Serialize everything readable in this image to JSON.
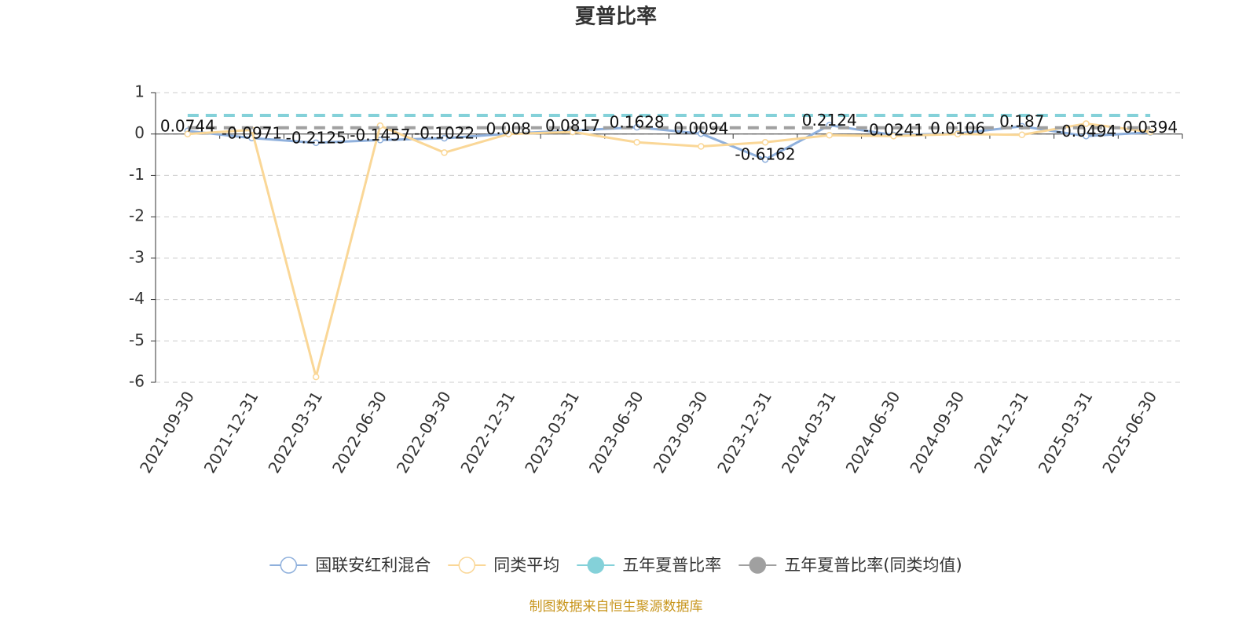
{
  "chart_data": {
    "type": "line",
    "title": "夏普比率",
    "categories": [
      "2021-09-30",
      "2021-12-31",
      "2022-03-31",
      "2022-06-30",
      "2022-09-30",
      "2022-12-31",
      "2023-03-31",
      "2023-06-30",
      "2023-09-30",
      "2023-12-31",
      "2024-03-31",
      "2024-06-30",
      "2024-09-30",
      "2024-12-31",
      "2025-03-31",
      "2025-06-30"
    ],
    "series": [
      {
        "name": "国联安红利混合",
        "color": "#8fb0dc",
        "symbol": "emptyCircle",
        "dashed": false,
        "data_labels": true,
        "values": [
          0.0744,
          -0.0971,
          -0.2125,
          -0.1457,
          -0.1022,
          0.008,
          0.0817,
          0.1628,
          0.0094,
          -0.6162,
          0.2124,
          -0.0241,
          0.0106,
          0.187,
          -0.0494,
          0.0394
        ]
      },
      {
        "name": "同类平均",
        "color": "#fad797",
        "symbol": "emptyCircle",
        "dashed": false,
        "data_labels": false,
        "values": [
          0.0,
          0.1,
          -5.87,
          0.2,
          -0.45,
          0.0,
          0.05,
          -0.2,
          -0.3,
          -0.2,
          -0.03,
          -0.05,
          0.0,
          -0.02,
          0.25,
          0.05
        ]
      },
      {
        "name": "五年夏普比率",
        "color": "#84d1d9",
        "symbol": "circle",
        "dashed": true,
        "data_labels": false,
        "values": [
          0.45,
          0.45,
          0.45,
          0.45,
          0.45,
          0.45,
          0.45,
          0.45,
          0.45,
          0.45,
          0.45,
          0.45,
          0.45,
          0.45,
          0.45,
          0.45
        ]
      },
      {
        "name": "五年夏普比率(同类均值)",
        "color": "#a0a0a0",
        "symbol": "circle",
        "dashed": true,
        "data_labels": false,
        "values": [
          0.15,
          0.15,
          0.15,
          0.15,
          0.15,
          0.15,
          0.15,
          0.15,
          0.15,
          0.15,
          0.15,
          0.15,
          0.15,
          0.15,
          0.15,
          0.15
        ]
      }
    ],
    "ylim": [
      -6,
      1
    ],
    "yticks": [
      -6,
      -5,
      -4,
      -3,
      -2,
      -1,
      0,
      1
    ],
    "grid": true,
    "legend": "bottom",
    "source": "制图数据来自恒生聚源数据库"
  }
}
